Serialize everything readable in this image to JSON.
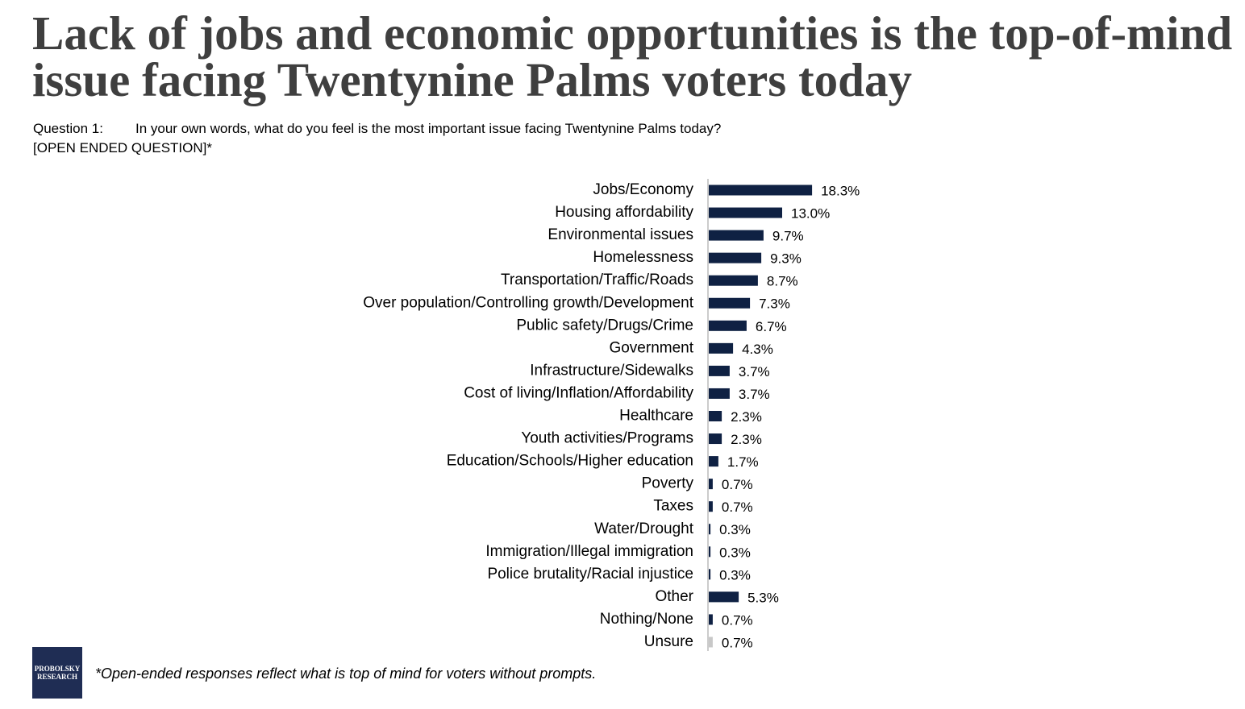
{
  "chart_data": {
    "type": "bar",
    "orientation": "horizontal",
    "title": "Lack of jobs and economic opportunities is the top-of-mind issue facing Twentynine Palms voters today",
    "question_label": "Question 1:",
    "question": "In your own words, what do you feel is the most important issue facing Twentynine Palms today?",
    "question_note": "[OPEN ENDED QUESTION]*",
    "footnote": "*Open-ended responses reflect what is top of mind for voters without prompts.",
    "logo": "PROBOLSKY RESEARCH",
    "categories": [
      "Jobs/Economy",
      "Housing affordability",
      "Environmental issues",
      "Homelessness",
      "Transportation/Traffic/Roads",
      "Over population/Controlling growth/Development",
      "Public safety/Drugs/Crime",
      "Government",
      "Infrastructure/Sidewalks",
      "Cost of living/Inflation/Affordability",
      "Healthcare",
      "Youth activities/Programs",
      "Education/Schools/Higher education",
      "Poverty",
      "Taxes",
      "Water/Drought",
      "Immigration/Illegal immigration",
      "Police brutality/Racial injustice",
      "Other",
      "Nothing/None",
      "Unsure"
    ],
    "values": [
      18.3,
      13.0,
      9.7,
      9.3,
      8.7,
      7.3,
      6.7,
      4.3,
      3.7,
      3.7,
      2.3,
      2.3,
      1.7,
      0.7,
      0.7,
      0.3,
      0.3,
      0.3,
      5.3,
      0.7,
      0.7
    ],
    "value_labels": [
      "18.3%",
      "13.0%",
      "9.7%",
      "9.3%",
      "8.7%",
      "7.3%",
      "6.7%",
      "4.3%",
      "3.7%",
      "3.7%",
      "2.3%",
      "2.3%",
      "1.7%",
      "0.7%",
      "0.7%",
      "0.3%",
      "0.3%",
      "0.3%",
      "5.3%",
      "0.7%",
      "0.7%"
    ],
    "colors": [
      "#0f2143",
      "#0f2143",
      "#0f2143",
      "#0f2143",
      "#0f2143",
      "#0f2143",
      "#0f2143",
      "#0f2143",
      "#0f2143",
      "#0f2143",
      "#0f2143",
      "#0f2143",
      "#0f2143",
      "#0f2143",
      "#0f2143",
      "#0f2143",
      "#0f2143",
      "#0f2143",
      "#0f2143",
      "#0f2143",
      "#c8c8c8"
    ]
  }
}
